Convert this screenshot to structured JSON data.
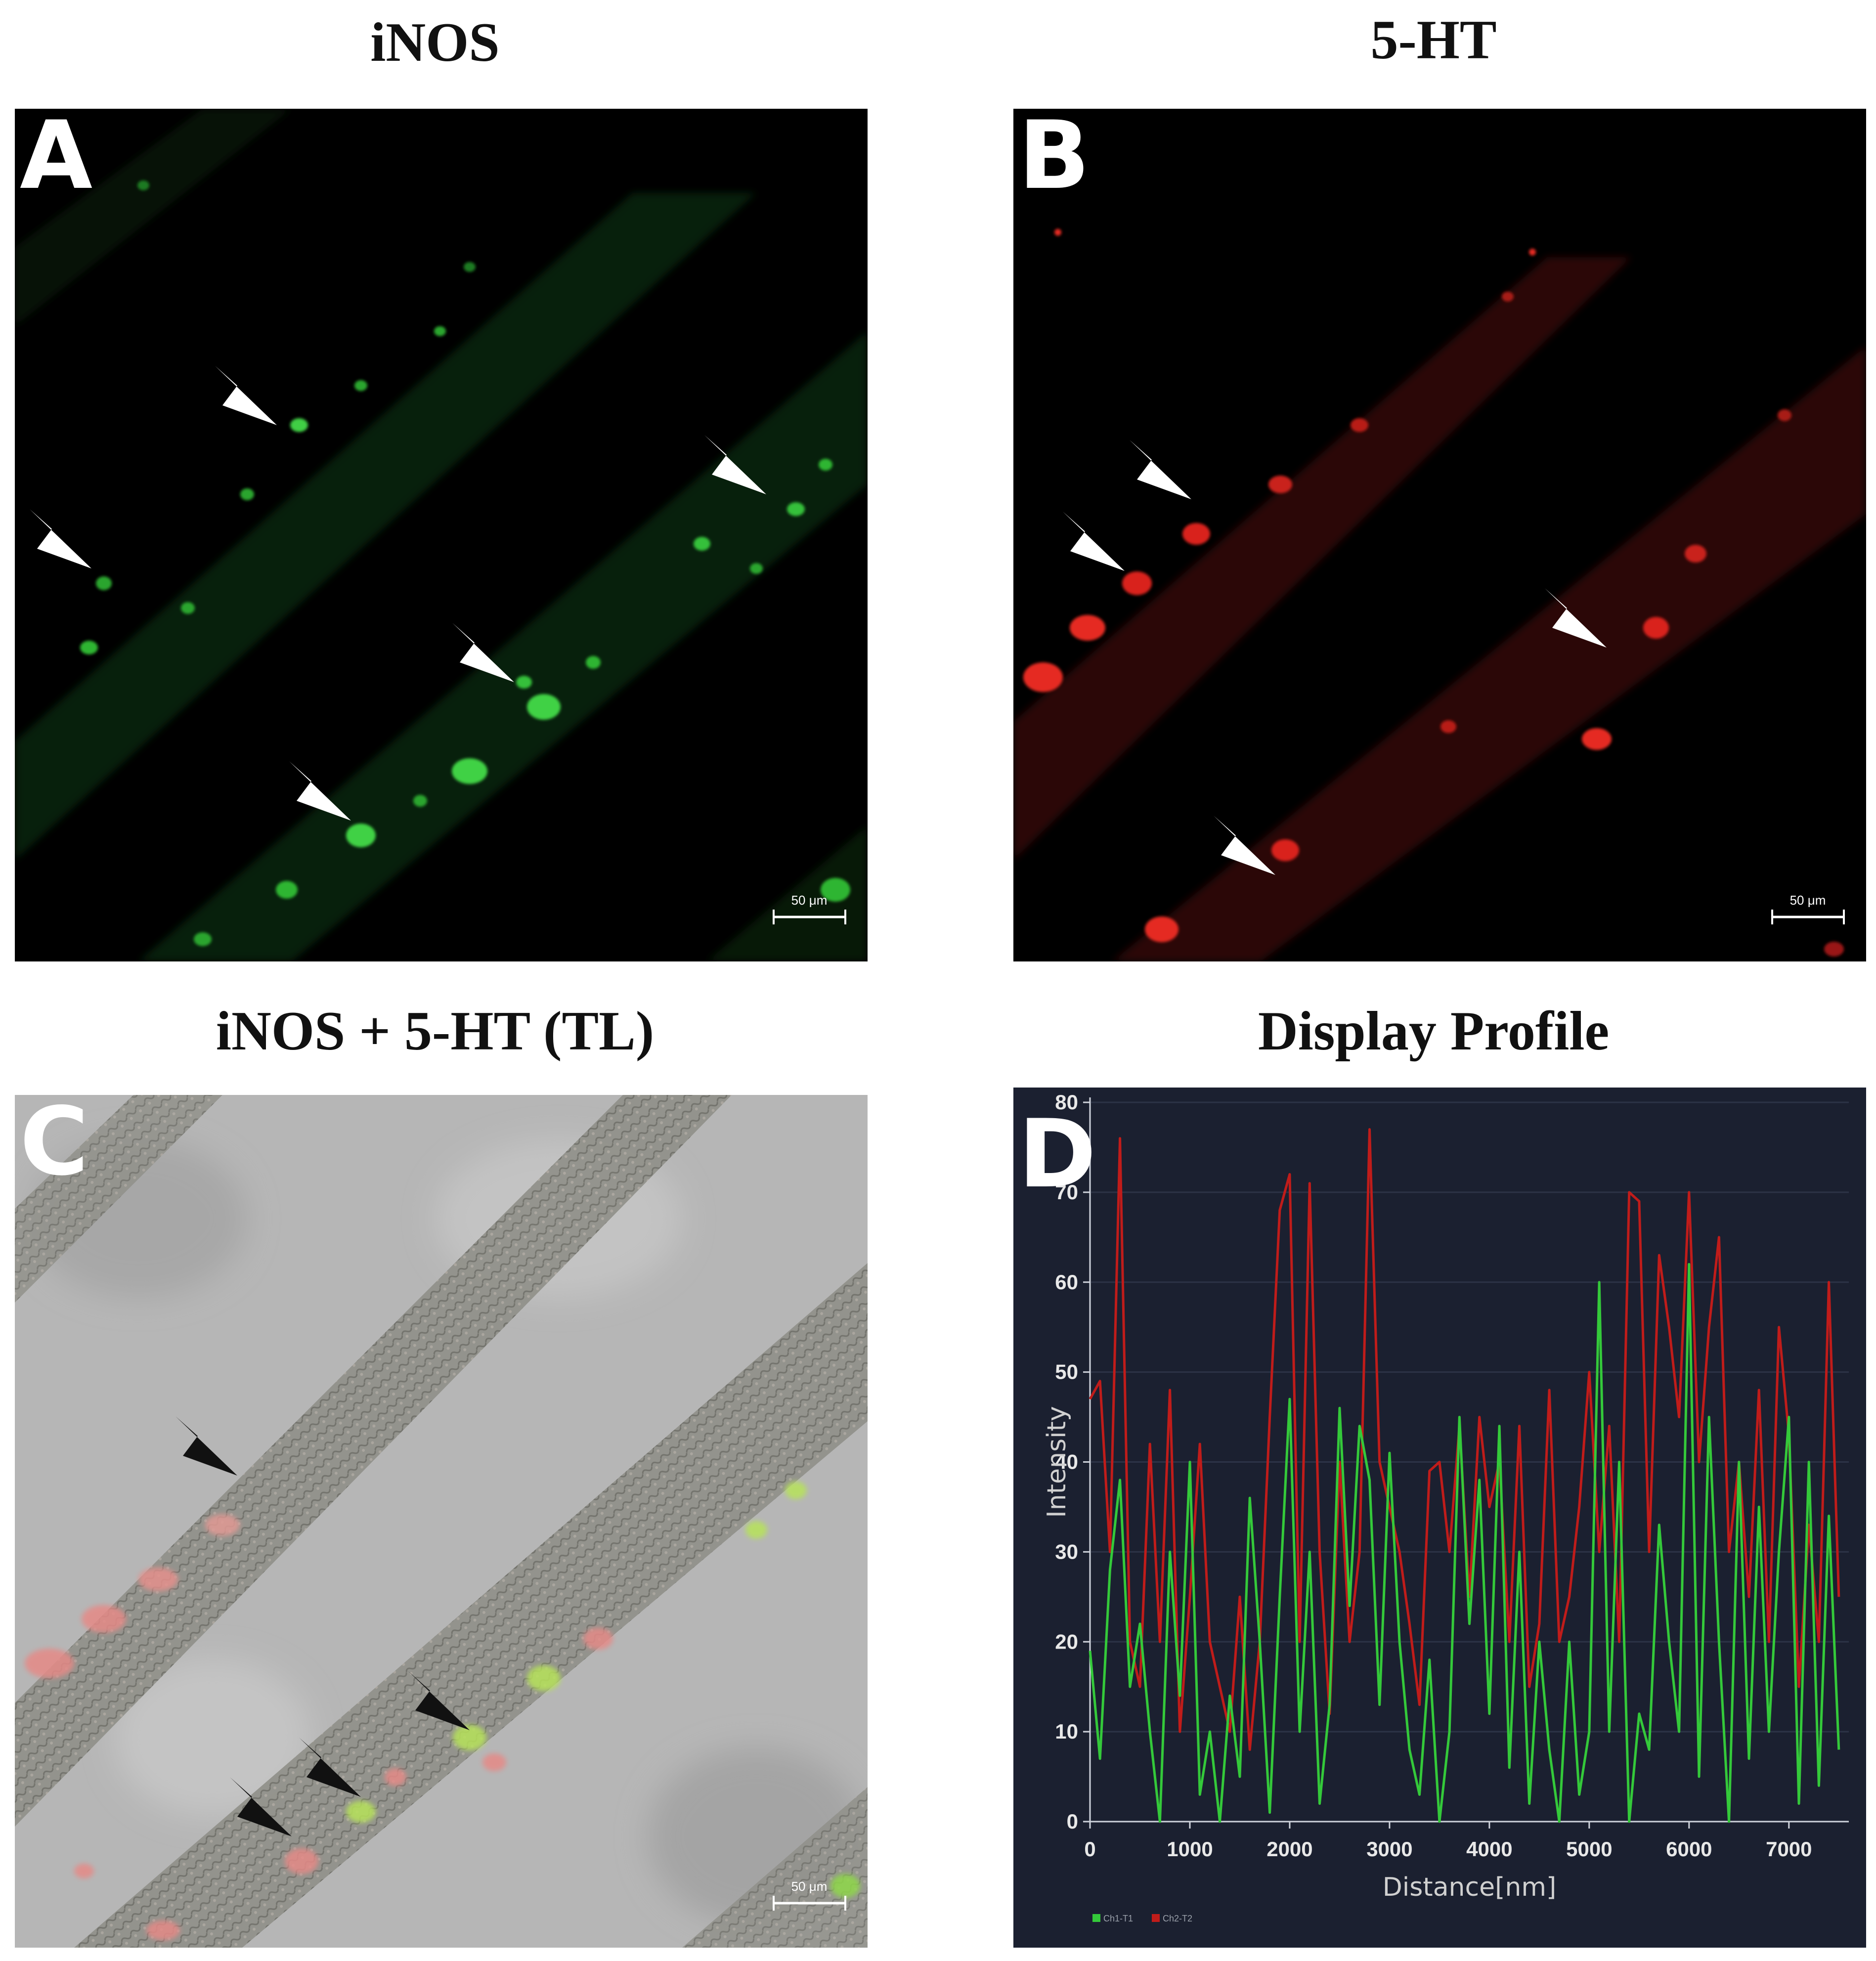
{
  "panels": {
    "a": {
      "title": "iNOS",
      "letter": "A",
      "scale_bar": "50 μm"
    },
    "b": {
      "title": "5-HT",
      "letter": "B",
      "scale_bar": "50 μm"
    },
    "c": {
      "title": "iNOS + 5-HT (TL)",
      "letter": "C",
      "scale_bar": "50 μm"
    },
    "d": {
      "title": "Display Profile",
      "letter": "D"
    }
  },
  "colors": {
    "green_channel": "#2fd13a",
    "red_channel": "#e0231f",
    "profile_background": "#1b2030"
  },
  "chart_data": {
    "type": "line",
    "xlabel": "Distance[nm]",
    "ylabel": "Intensity",
    "xlim": [
      0,
      7600
    ],
    "ylim": [
      0,
      80
    ],
    "xticks": [
      "0",
      "1000",
      "2000",
      "3000",
      "4000",
      "5000",
      "6000",
      "7000"
    ],
    "yticks": [
      "0",
      "10",
      "20",
      "30",
      "40",
      "50",
      "60",
      "70",
      "80"
    ],
    "grid": true,
    "legend_position": "bottom-left",
    "series": [
      {
        "name": "Ch1-T1",
        "color": "#34c93a",
        "x": [
          0,
          100,
          200,
          300,
          400,
          500,
          600,
          700,
          800,
          900,
          1000,
          1100,
          1200,
          1300,
          1400,
          1500,
          1600,
          1700,
          1800,
          1900,
          2000,
          2100,
          2200,
          2300,
          2400,
          2500,
          2600,
          2700,
          2800,
          2900,
          3000,
          3100,
          3200,
          3300,
          3400,
          3500,
          3600,
          3700,
          3800,
          3900,
          4000,
          4100,
          4200,
          4300,
          4400,
          4500,
          4600,
          4700,
          4800,
          4900,
          5000,
          5100,
          5200,
          5300,
          5400,
          5500,
          5600,
          5700,
          5800,
          5900,
          6000,
          6100,
          6200,
          6300,
          6400,
          6500,
          6600,
          6700,
          6800,
          6900,
          7000,
          7100,
          7200,
          7300,
          7400,
          7500
        ],
        "values": [
          19,
          7,
          28,
          38,
          15,
          22,
          10,
          0,
          30,
          14,
          40,
          3,
          10,
          0,
          14,
          5,
          36,
          20,
          1,
          25,
          47,
          10,
          30,
          2,
          13,
          46,
          24,
          44,
          38,
          13,
          41,
          20,
          8,
          3,
          18,
          0,
          10,
          45,
          22,
          38,
          12,
          44,
          6,
          30,
          2,
          20,
          8,
          0,
          20,
          3,
          10,
          60,
          10,
          40,
          0,
          12,
          8,
          33,
          20,
          10,
          62,
          5,
          45,
          20,
          0,
          40,
          7,
          35,
          10,
          30,
          45,
          2,
          40,
          4,
          34,
          8
        ]
      },
      {
        "name": "Ch2-T2",
        "color": "#c01c1a",
        "x": [
          0,
          100,
          200,
          300,
          400,
          500,
          600,
          700,
          800,
          900,
          1000,
          1100,
          1200,
          1300,
          1400,
          1500,
          1600,
          1700,
          1800,
          1900,
          2000,
          2100,
          2200,
          2300,
          2400,
          2500,
          2600,
          2700,
          2800,
          2900,
          3000,
          3100,
          3200,
          3300,
          3400,
          3500,
          3600,
          3700,
          3800,
          3900,
          4000,
          4100,
          4200,
          4300,
          4400,
          4500,
          4600,
          4700,
          4800,
          4900,
          5000,
          5100,
          5200,
          5300,
          5400,
          5500,
          5600,
          5700,
          5800,
          5900,
          6000,
          6100,
          6200,
          6300,
          6400,
          6500,
          6600,
          6700,
          6800,
          6900,
          7000,
          7100,
          7200,
          7300,
          7400,
          7500
        ],
        "values": [
          47,
          49,
          30,
          76,
          20,
          15,
          42,
          20,
          48,
          10,
          25,
          42,
          20,
          15,
          10,
          25,
          8,
          20,
          45,
          68,
          72,
          20,
          71,
          30,
          12,
          40,
          20,
          30,
          77,
          40,
          35,
          30,
          22,
          13,
          39,
          40,
          30,
          44,
          25,
          45,
          35,
          40,
          20,
          44,
          15,
          22,
          48,
          20,
          25,
          35,
          50,
          30,
          44,
          20,
          70,
          69,
          30,
          63,
          55,
          45,
          70,
          40,
          55,
          65,
          30,
          40,
          25,
          48,
          20,
          55,
          43,
          15,
          33,
          20,
          60,
          25
        ]
      }
    ]
  }
}
